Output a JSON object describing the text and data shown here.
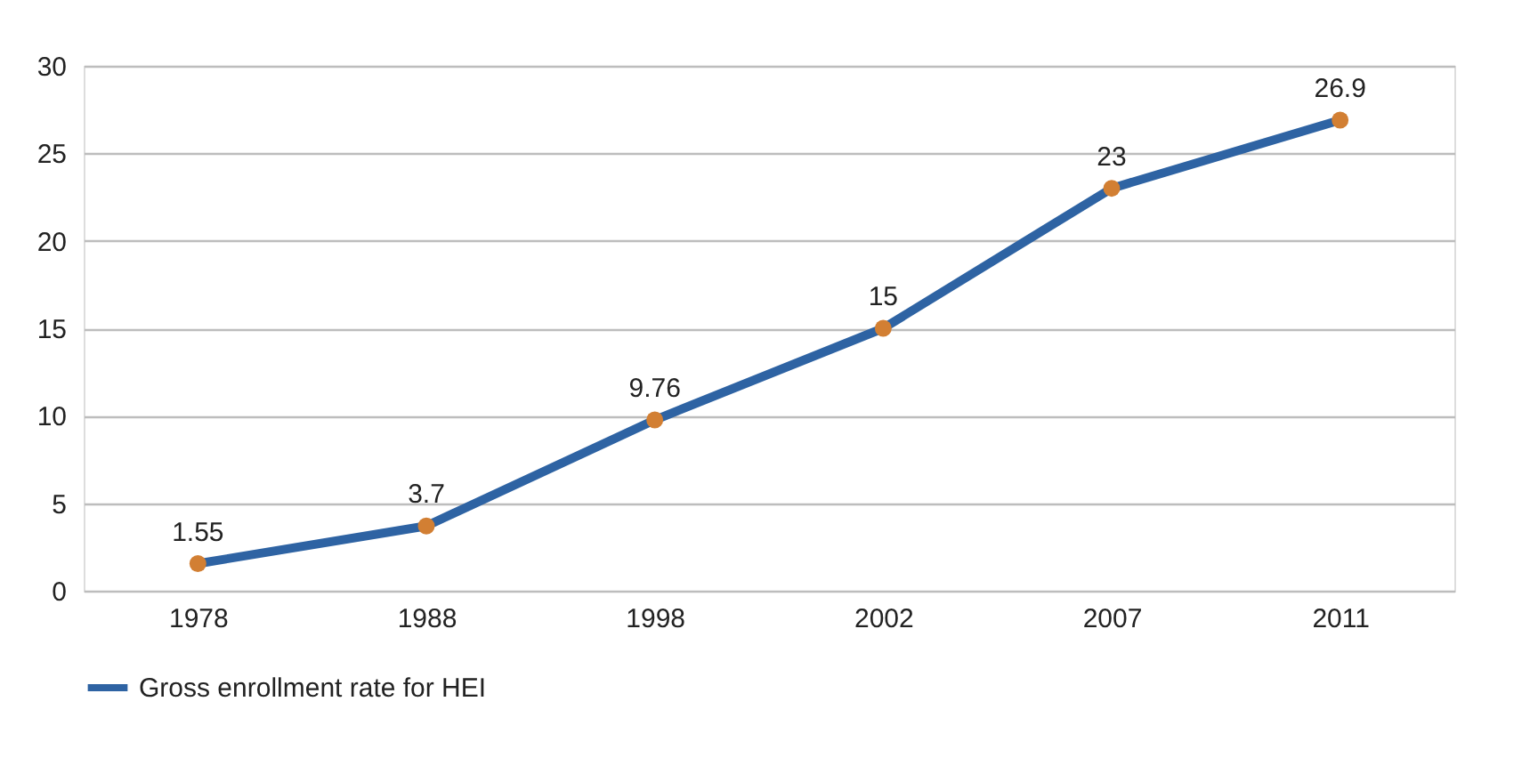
{
  "chart_data": {
    "type": "line",
    "categories": [
      "1978",
      "1988",
      "1998",
      "2002",
      "2007",
      "2011"
    ],
    "series": [
      {
        "name": "Gross enrollment rate for HEI",
        "color": "#2e63a3",
        "values": [
          1.55,
          3.7,
          9.76,
          15,
          23,
          26.9
        ]
      }
    ],
    "colors": [
      "#d27f33",
      "#d27f33",
      "#d27f33",
      "#d27f33",
      "#d27f33",
      "#d27f33"
    ],
    "ylim": [
      0,
      30
    ],
    "yticks": [
      0,
      5,
      10,
      15,
      20,
      25,
      30
    ],
    "grid": "y",
    "legend": "bottom",
    "marker": "circle",
    "line_style": "solid",
    "data_labels": true
  }
}
